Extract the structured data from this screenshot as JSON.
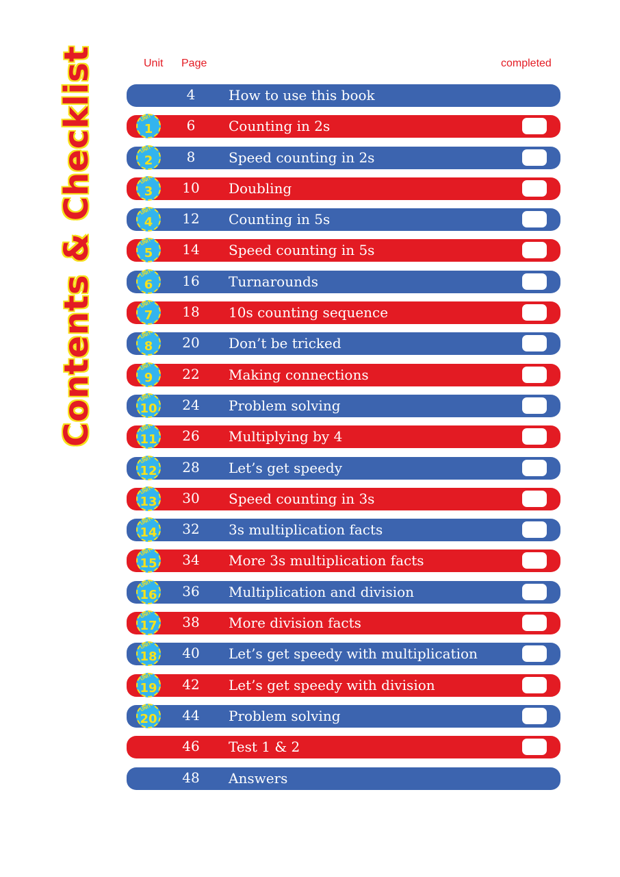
{
  "side_title": "Contents & Checklist",
  "header": {
    "unit": "Unit",
    "page": "Page",
    "completed": "completed"
  },
  "badge_word": "UNIT",
  "colors": {
    "blue": "#3c64af",
    "red": "#e31b23",
    "badge": "#33b4ee",
    "yellow": "#f7e11c"
  },
  "rows": [
    {
      "unit": "",
      "page": "4",
      "title": "How to use this book",
      "color": "blue",
      "checkbox": false
    },
    {
      "unit": "1",
      "page": "6",
      "title": "Counting in 2s",
      "color": "red",
      "checkbox": true
    },
    {
      "unit": "2",
      "page": "8",
      "title": "Speed counting in 2s",
      "color": "blue",
      "checkbox": true
    },
    {
      "unit": "3",
      "page": "10",
      "title": "Doubling",
      "color": "red",
      "checkbox": true
    },
    {
      "unit": "4",
      "page": "12",
      "title": "Counting in 5s",
      "color": "blue",
      "checkbox": true
    },
    {
      "unit": "5",
      "page": "14",
      "title": "Speed counting in 5s",
      "color": "red",
      "checkbox": true
    },
    {
      "unit": "6",
      "page": "16",
      "title": "Turnarounds",
      "color": "blue",
      "checkbox": true
    },
    {
      "unit": "7",
      "page": "18",
      "title": "10s counting sequence",
      "color": "red",
      "checkbox": true
    },
    {
      "unit": "8",
      "page": "20",
      "title": "Don’t be tricked",
      "color": "blue",
      "checkbox": true
    },
    {
      "unit": "9",
      "page": "22",
      "title": "Making connections",
      "color": "red",
      "checkbox": true
    },
    {
      "unit": "10",
      "page": "24",
      "title": "Problem solving",
      "color": "blue",
      "checkbox": true
    },
    {
      "unit": "11",
      "page": "26",
      "title": "Multiplying by 4",
      "color": "red",
      "checkbox": true
    },
    {
      "unit": "12",
      "page": "28",
      "title": "Let’s get speedy",
      "color": "blue",
      "checkbox": true
    },
    {
      "unit": "13",
      "page": "30",
      "title": "Speed counting in 3s",
      "color": "red",
      "checkbox": true
    },
    {
      "unit": "14",
      "page": "32",
      "title": "3s multiplication facts",
      "color": "blue",
      "checkbox": true
    },
    {
      "unit": "15",
      "page": "34",
      "title": "More 3s multiplication facts",
      "color": "red",
      "checkbox": true
    },
    {
      "unit": "16",
      "page": "36",
      "title": "Multiplication and division",
      "color": "blue",
      "checkbox": true
    },
    {
      "unit": "17",
      "page": "38",
      "title": "More division facts",
      "color": "red",
      "checkbox": true
    },
    {
      "unit": "18",
      "page": "40",
      "title": "Let’s get speedy with multiplication",
      "color": "blue",
      "checkbox": true
    },
    {
      "unit": "19",
      "page": "42",
      "title": "Let’s get speedy with division",
      "color": "red",
      "checkbox": true
    },
    {
      "unit": "20",
      "page": "44",
      "title": "Problem solving",
      "color": "blue",
      "checkbox": true
    },
    {
      "unit": "",
      "page": "46",
      "title": "Test 1 & 2",
      "color": "red",
      "checkbox": true
    },
    {
      "unit": "",
      "page": "48",
      "title": "Answers",
      "color": "blue",
      "checkbox": false
    }
  ]
}
